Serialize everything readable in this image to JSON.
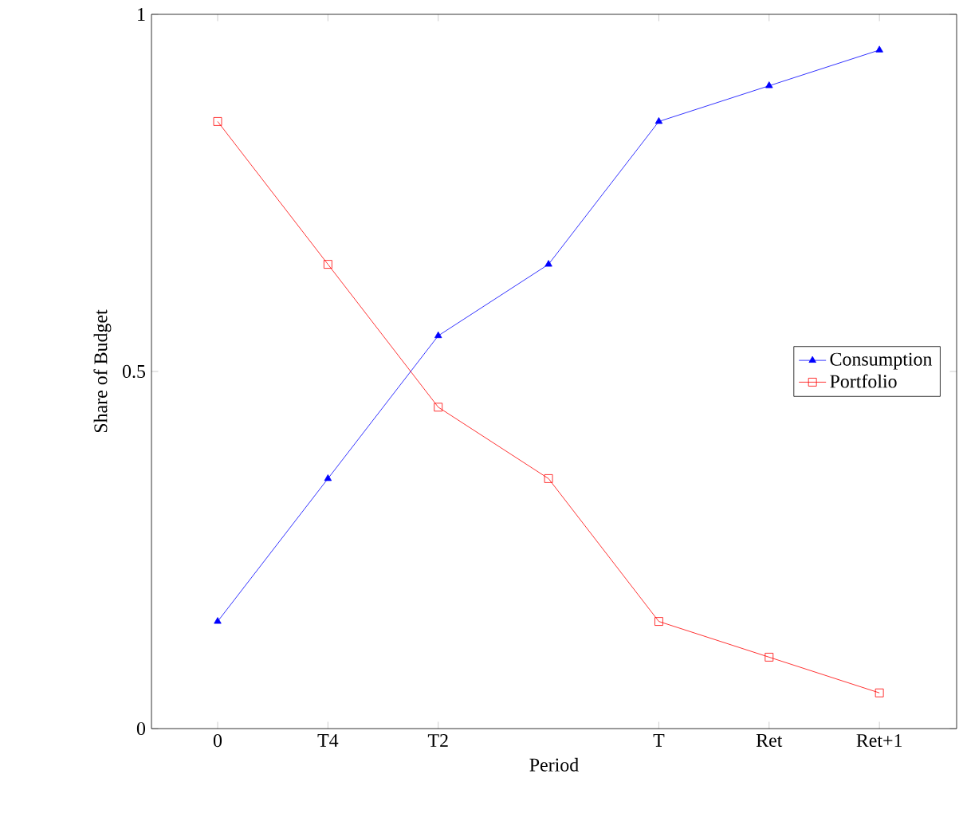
{
  "chart_data": {
    "type": "line",
    "xlabel": "Period",
    "ylabel": "Share of Budget",
    "categories": [
      "0",
      "T4",
      "T2",
      null,
      "T",
      "Ret",
      "Ret+1"
    ],
    "ylim": [
      0,
      1
    ],
    "yticks": [
      0,
      0.5,
      1
    ],
    "series": [
      {
        "name": "Consumption",
        "color": "#0000ff",
        "marker": "triangle",
        "values": [
          0.15,
          0.35,
          0.55,
          0.65,
          0.85,
          0.9,
          0.95
        ]
      },
      {
        "name": "Portfolio",
        "color": "#ff0000",
        "marker": "square",
        "values": [
          0.85,
          0.65,
          0.45,
          0.35,
          0.15,
          0.1,
          0.05
        ]
      }
    ],
    "legend": "right",
    "grid": false
  }
}
